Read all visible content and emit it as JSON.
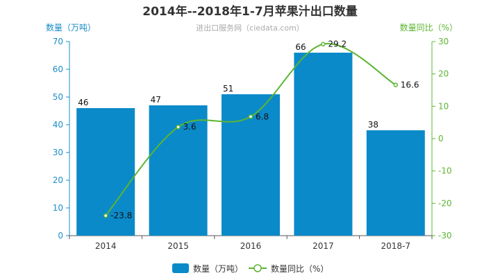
{
  "chart_data": {
    "type": "bar",
    "title": "2014年--2018年1-7月苹果汁出口数量",
    "subtitle": "进出口服务网（ciedata.com）",
    "categories": [
      "2014",
      "2015",
      "2016",
      "2017",
      "2018-7"
    ],
    "y_left": {
      "label": "数量（万吨）",
      "range": [
        0,
        70
      ],
      "ticks": [
        0,
        10,
        20,
        30,
        40,
        50,
        60,
        70
      ],
      "color": "#1a8cc8"
    },
    "y_right": {
      "label": "数量同比（%）",
      "range": [
        -30,
        30
      ],
      "ticks": [
        -30,
        -20,
        -10,
        0,
        10,
        20,
        30
      ],
      "color": "#5cb531"
    },
    "series": [
      {
        "name": "数量（万吨）",
        "type": "bar",
        "axis": "left",
        "color": "#0b8ac9",
        "values": [
          46,
          47,
          51,
          66,
          38
        ]
      },
      {
        "name": "数量同比（%）",
        "type": "line",
        "axis": "right",
        "color": "#5cb531",
        "smooth": true,
        "values": [
          -23.8,
          3.6,
          6.8,
          29.2,
          16.6
        ]
      }
    ],
    "legend_position": "bottom-center",
    "grid": false
  }
}
